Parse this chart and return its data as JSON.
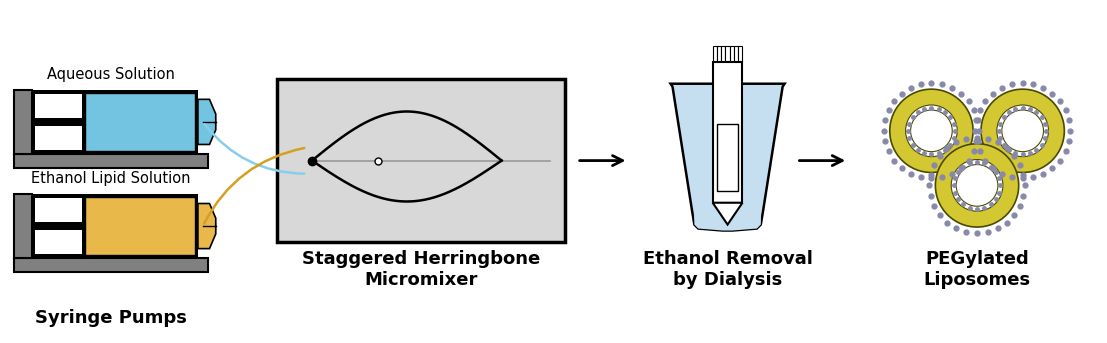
{
  "labels": {
    "aqueous": "Aqueous Solution",
    "ethanol": "Ethanol Lipid Solution",
    "syringe": "Syringe Pumps",
    "mixer": "Staggered Herringbone\nMicromixer",
    "dialysis": "Ethanol Removal\nby Dialysis",
    "liposomes": "PEGylated\nLiposomes"
  },
  "colors": {
    "bg": "#ffffff",
    "gray_dark": "#808080",
    "gray_mid": "#999999",
    "black": "#000000",
    "blue_fluid": "#72c4e0",
    "yellow_fluid": "#e8b84b",
    "blue_line": "#87ceeb",
    "yellow_line": "#d4a020",
    "liposome_yellow": "#d4c832",
    "liposome_ring": "#4a4a00",
    "liposome_dot": "#8888aa",
    "mixer_bg": "#d8d8d8",
    "beaker_fill": "#c5dff0",
    "white": "#ffffff"
  }
}
